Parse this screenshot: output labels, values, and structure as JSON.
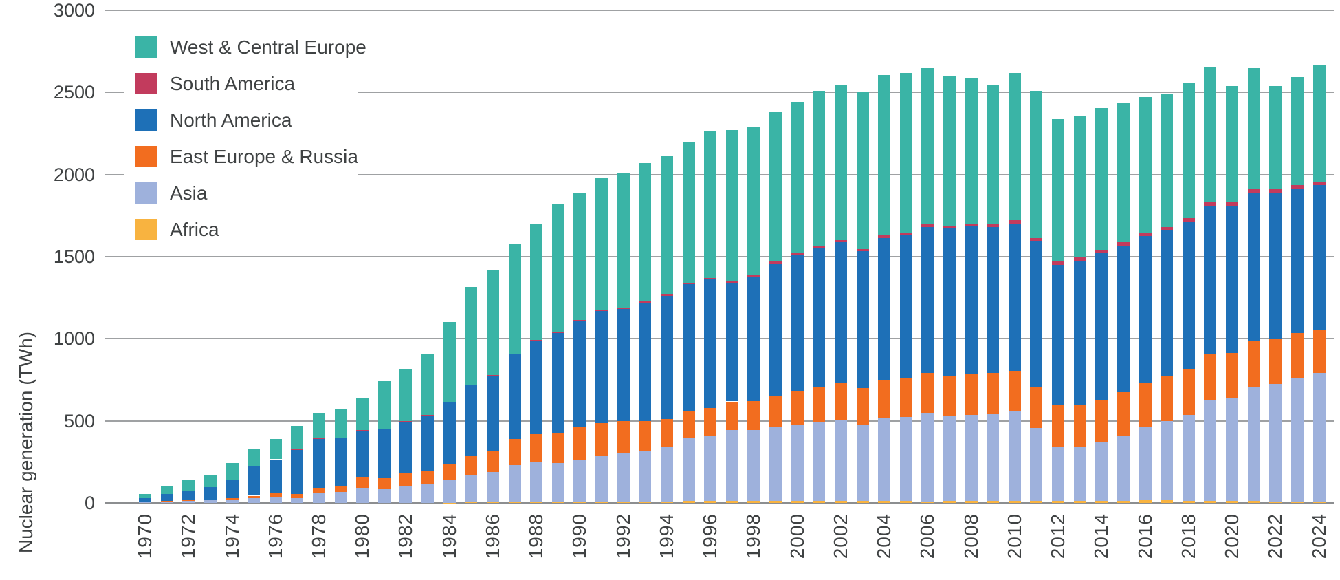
{
  "chart_data": {
    "type": "bar",
    "stacked": true,
    "y_axis_title": "Nuclear generation (TWh)",
    "ylim": [
      0,
      3000
    ],
    "y_ticks": [
      0,
      500,
      1000,
      1500,
      2000,
      2500,
      3000
    ],
    "x_label_every_years": 2,
    "grid": "horizontal",
    "legend_position": "top-left",
    "stack_order_bottom_to_top": [
      "Africa",
      "Asia",
      "East Europe & Russia",
      "North America",
      "South America",
      "West & Central Europe"
    ],
    "years": [
      1970,
      1971,
      1972,
      1973,
      1974,
      1975,
      1976,
      1977,
      1978,
      1979,
      1980,
      1981,
      1982,
      1983,
      1984,
      1985,
      1986,
      1987,
      1988,
      1989,
      1990,
      1991,
      1992,
      1993,
      1994,
      1995,
      1996,
      1997,
      1998,
      1999,
      2000,
      2001,
      2002,
      2003,
      2004,
      2005,
      2006,
      2007,
      2008,
      2009,
      2010,
      2011,
      2012,
      2013,
      2014,
      2015,
      2016,
      2017,
      2018,
      2019,
      2020,
      2021,
      2022,
      2023,
      2024
    ],
    "series": [
      {
        "name": "West & Central Europe",
        "color": "#3ab4a6",
        "values": [
          24,
          45,
          63,
          74,
          104,
          104,
          124,
          144,
          158,
          179,
          194,
          288,
          313,
          372,
          482,
          595,
          640,
          667,
          706,
          780,
          775,
          804,
          816,
          838,
          840,
          854,
          896,
          920,
          905,
          910,
          922,
          941,
          944,
          953,
          976,
          975,
          955,
          913,
          892,
          848,
          900,
          897,
          870,
          866,
          865,
          846,
          822,
          809,
          821,
          824,
          709,
          740,
          627,
          660,
          707
        ]
      },
      {
        "name": "South America",
        "color": "#c23b5d",
        "values": [
          0,
          0,
          0,
          0,
          1,
          2,
          2,
          2,
          2,
          2,
          2,
          2,
          2,
          3,
          4,
          4,
          4,
          4,
          5,
          8,
          8,
          8,
          10,
          10,
          10,
          10,
          10,
          12,
          12,
          12,
          12,
          13,
          14,
          14,
          15,
          17,
          15,
          15,
          15,
          15,
          21,
          20,
          19,
          20,
          20,
          21,
          23,
          21,
          22,
          23,
          24,
          23,
          23,
          22,
          23
        ]
      },
      {
        "name": "North America",
        "color": "#1e70b7",
        "values": [
          23,
          42,
          60,
          75,
          110,
          180,
          206,
          268,
          300,
          290,
          287,
          300,
          315,
          335,
          375,
          432,
          462,
          517,
          570,
          613,
          640,
          686,
          680,
          720,
          750,
          775,
          781,
          720,
          755,
          805,
          823,
          850,
          860,
          835,
          870,
          869,
          890,
          895,
          895,
          890,
          893,
          885,
          858,
          875,
          890,
          893,
          895,
          890,
          900,
          904,
          893,
          900,
          890,
          880,
          880
        ]
      },
      {
        "name": "East Europe & Russia",
        "color": "#f26d1f",
        "values": [
          3,
          4,
          5,
          6,
          8,
          16,
          20,
          26,
          30,
          38,
          62,
          65,
          78,
          85,
          95,
          115,
          125,
          160,
          172,
          180,
          200,
          198,
          200,
          185,
          170,
          160,
          172,
          175,
          178,
          190,
          205,
          215,
          220,
          225,
          225,
          237,
          240,
          245,
          250,
          250,
          246,
          250,
          255,
          255,
          260,
          268,
          270,
          270,
          275,
          280,
          277,
          280,
          275,
          270,
          262
        ]
      },
      {
        "name": "Asia",
        "color": "#9eb1dc",
        "values": [
          5,
          9,
          12,
          15,
          22,
          28,
          38,
          30,
          60,
          66,
          92,
          85,
          105,
          112,
          142,
          165,
          184,
          225,
          240,
          232,
          256,
          277,
          291,
          308,
          331,
          386,
          396,
          430,
          430,
          450,
          466,
          480,
          495,
          460,
          505,
          510,
          540,
          520,
          525,
          530,
          548,
          445,
          325,
          330,
          355,
          395,
          445,
          485,
          525,
          610,
          625,
          695,
          715,
          755,
          785
        ]
      },
      {
        "name": "Africa",
        "color": "#f8b340",
        "values": [
          0,
          0,
          0,
          0,
          0,
          0,
          0,
          0,
          0,
          0,
          0,
          0,
          0,
          0,
          2,
          4,
          5,
          5,
          7,
          10,
          9,
          9,
          9,
          7,
          9,
          11,
          12,
          13,
          13,
          13,
          13,
          11,
          12,
          13,
          14,
          12,
          10,
          12,
          13,
          12,
          12,
          13,
          13,
          14,
          14,
          12,
          15,
          15,
          12,
          14,
          12,
          12,
          10,
          8,
          8
        ]
      }
    ]
  },
  "colors": {
    "background": "#ffffff",
    "grid_line": "#9fa1a3",
    "axis_line": "#8c8e90",
    "text": "#3f4243"
  }
}
